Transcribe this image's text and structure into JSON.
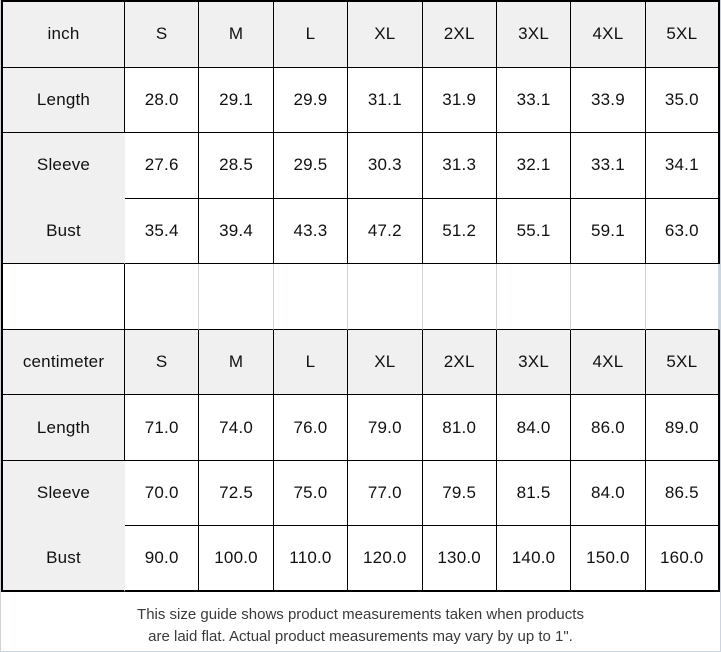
{
  "size_guide": {
    "tables": [
      {
        "unit": "inch",
        "sizes": [
          "S",
          "M",
          "L",
          "XL",
          "2XL",
          "3XL",
          "4XL",
          "5XL"
        ],
        "rows": [
          {
            "label": "Length",
            "values": [
              "28.0",
              "29.1",
              "29.9",
              "31.1",
              "31.9",
              "33.1",
              "33.9",
              "35.0"
            ]
          },
          {
            "label": "Sleeve",
            "values": [
              "27.6",
              "28.5",
              "29.5",
              "30.3",
              "31.3",
              "32.1",
              "33.1",
              "34.1"
            ]
          },
          {
            "label": "Bust",
            "values": [
              "35.4",
              "39.4",
              "43.3",
              "47.2",
              "51.2",
              "55.1",
              "59.1",
              "63.0"
            ]
          }
        ]
      },
      {
        "unit": "centimeter",
        "sizes": [
          "S",
          "M",
          "L",
          "XL",
          "2XL",
          "3XL",
          "4XL",
          "5XL"
        ],
        "rows": [
          {
            "label": "Length",
            "values": [
              "71.0",
              "74.0",
              "76.0",
              "79.0",
              "81.0",
              "84.0",
              "86.0",
              "89.0"
            ]
          },
          {
            "label": "Sleeve",
            "values": [
              "70.0",
              "72.5",
              "75.0",
              "77.0",
              "79.5",
              "81.5",
              "84.0",
              "86.5"
            ]
          },
          {
            "label": "Bust",
            "values": [
              "90.0",
              "100.0",
              "110.0",
              "120.0",
              "130.0",
              "140.0",
              "150.0",
              "160.0"
            ]
          }
        ]
      }
    ],
    "footer": {
      "line1": "This size guide shows product measurements taken when products",
      "line2": "are laid flat. Actual product measurements may vary by up to 1\"."
    },
    "colors": {
      "header_bg": "#f0f0f0",
      "border_dark": "#000000",
      "border_light": "#ccd4e2",
      "text": "#111111"
    }
  }
}
